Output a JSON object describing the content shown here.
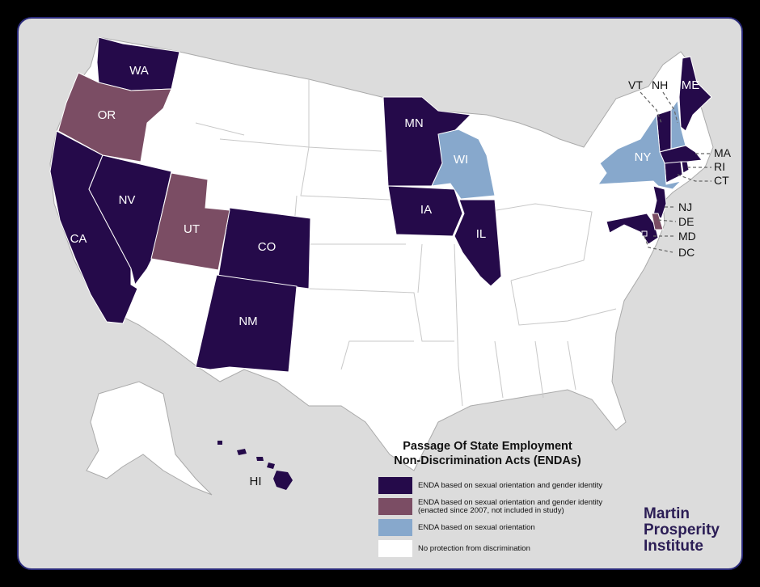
{
  "title_line1": "Passage Of State Employment",
  "title_line2": "Non-Discrimination Acts (ENDAs)",
  "colors": {
    "orientation_and_identity": "#250a4a",
    "orientation_and_identity_since_2007": "#7b4d64",
    "orientation_only": "#87a8cc",
    "none": "#ffffff",
    "ocean": "#dcdcdc",
    "border": "#2a2a7a"
  },
  "legend": [
    {
      "key": "orientation_and_identity",
      "label": "ENDA based on sexual orientation and gender identity"
    },
    {
      "key": "orientation_and_identity_since_2007",
      "label": "ENDA based on sexual orientation and gender identity\n(enacted since 2007, not included in study)"
    },
    {
      "key": "orientation_only",
      "label": "ENDA based on sexual orientation"
    },
    {
      "key": "none",
      "label": "No protection from discrimination"
    }
  ],
  "state_labels": {
    "WA": "WA",
    "OR": "OR",
    "CA": "CA",
    "NV": "NV",
    "UT": "UT",
    "CO": "CO",
    "NM": "NM",
    "MN": "MN",
    "IA": "IA",
    "IL": "IL",
    "WI": "WI",
    "NY": "NY",
    "ME": "ME",
    "HI": "HI"
  },
  "callout_labels": {
    "VT": "VT",
    "NH": "NH",
    "MA": "MA",
    "RI": "RI",
    "CT": "CT",
    "NJ": "NJ",
    "DE": "DE",
    "MD": "MD",
    "DC": "DC"
  },
  "categories": {
    "orientation_and_identity": [
      "WA",
      "CA",
      "NV",
      "CO",
      "NM",
      "MN",
      "IA",
      "IL",
      "VT",
      "ME",
      "MA",
      "RI",
      "CT",
      "NJ",
      "MD",
      "DC",
      "HI"
    ],
    "orientation_and_identity_since_2007": [
      "OR",
      "UT",
      "DE"
    ],
    "orientation_only": [
      "WI",
      "NY",
      "NH"
    ]
  },
  "brand": {
    "line1": "Martin",
    "line2": "Prosperity",
    "line3": "Institute"
  }
}
